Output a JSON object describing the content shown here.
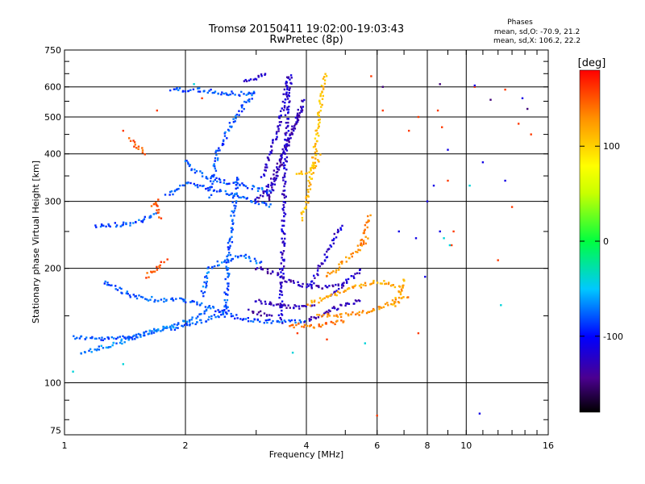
{
  "chart_data": {
    "type": "scatter",
    "title": "Tromsø 20150411 19:02:00-19:03:43",
    "subtitle": "RwPretec (8p)",
    "xlabel": "Frequency [MHz]",
    "ylabel": "Stationary phase Virtual Height [km]",
    "x_scale": "log",
    "y_scale": "log",
    "xlim": [
      1,
      16
    ],
    "ylim": [
      73,
      750
    ],
    "x_ticks": [
      1,
      2,
      4,
      6,
      8,
      10,
      16
    ],
    "y_ticks": [
      75,
      100,
      200,
      300,
      400,
      500,
      600,
      750
    ],
    "grid": true,
    "phase_stats": {
      "title": "Phases",
      "line_o": "mean, sd,O: -70.9, 21.2",
      "line_x": "mean, sd,X: 106.2, 22.2"
    },
    "colorbar": {
      "label": "[deg]",
      "range": [
        -180,
        180
      ],
      "ticks": [
        100,
        0,
        -100
      ]
    },
    "traces": [
      {
        "phase": -80,
        "points": [
          [
            1.05,
            132
          ],
          [
            1.25,
            130
          ],
          [
            1.5,
            133
          ],
          [
            1.8,
            138
          ],
          [
            2.1,
            143
          ],
          [
            2.4,
            150
          ],
          [
            2.6,
            158
          ]
        ]
      },
      {
        "phase": -70,
        "points": [
          [
            1.1,
            120
          ],
          [
            1.3,
            125
          ],
          [
            1.6,
            135
          ],
          [
            2.0,
            145
          ],
          [
            2.3,
            155
          ]
        ]
      },
      {
        "phase": -80,
        "points": [
          [
            1.25,
            185
          ],
          [
            1.45,
            170
          ],
          [
            1.7,
            165
          ],
          [
            2.0,
            165
          ],
          [
            2.3,
            158
          ],
          [
            2.6,
            150
          ],
          [
            3.0,
            145
          ],
          [
            3.5,
            145
          ],
          [
            4.0,
            145
          ]
        ]
      },
      {
        "phase": -80,
        "points": [
          [
            1.2,
            258
          ],
          [
            1.45,
            262
          ],
          [
            1.6,
            270
          ],
          [
            1.7,
            280
          ]
        ]
      },
      {
        "phase": -80,
        "points": [
          [
            1.8,
            310
          ],
          [
            2.0,
            335
          ],
          [
            2.3,
            325
          ],
          [
            2.7,
            310
          ],
          [
            3.0,
            300
          ],
          [
            3.3,
            290
          ]
        ]
      },
      {
        "phase": -80,
        "points": [
          [
            2.0,
            385
          ],
          [
            2.1,
            360
          ],
          [
            2.3,
            345
          ],
          [
            2.6,
            335
          ],
          [
            3.0,
            325
          ],
          [
            3.3,
            315
          ]
        ]
      },
      {
        "phase": -80,
        "points": [
          [
            1.85,
            590
          ],
          [
            2.1,
            590
          ],
          [
            2.4,
            580
          ],
          [
            2.7,
            575
          ],
          [
            3.0,
            580
          ]
        ]
      },
      {
        "phase": -80,
        "points": [
          [
            2.3,
            310
          ],
          [
            2.4,
            400
          ],
          [
            2.6,
            480
          ],
          [
            2.8,
            540
          ],
          [
            3.0,
            575
          ]
        ]
      },
      {
        "phase": -80,
        "points": [
          [
            2.5,
            150
          ],
          [
            2.55,
            200
          ],
          [
            2.6,
            250
          ],
          [
            2.65,
            300
          ],
          [
            2.7,
            350
          ]
        ]
      },
      {
        "phase": -75,
        "points": [
          [
            2.2,
            170
          ],
          [
            2.3,
            200
          ],
          [
            2.5,
            210
          ],
          [
            2.8,
            215
          ],
          [
            3.1,
            205
          ]
        ]
      },
      {
        "phase": -120,
        "points": [
          [
            2.8,
            625
          ],
          [
            3.0,
            635
          ],
          [
            3.2,
            645
          ]
        ]
      },
      {
        "phase": -130,
        "points": [
          [
            3.0,
            300
          ],
          [
            3.3,
            340
          ],
          [
            3.5,
            400
          ],
          [
            3.7,
            460
          ],
          [
            3.9,
            530
          ]
        ]
      },
      {
        "phase": -130,
        "points": [
          [
            3.2,
            300
          ],
          [
            3.4,
            360
          ],
          [
            3.6,
            430
          ],
          [
            3.8,
            500
          ],
          [
            3.95,
            560
          ]
        ]
      },
      {
        "phase": -120,
        "points": [
          [
            3.1,
            350
          ],
          [
            3.3,
            420
          ],
          [
            3.45,
            500
          ],
          [
            3.55,
            580
          ],
          [
            3.6,
            645
          ]
        ]
      },
      {
        "phase": -120,
        "points": [
          [
            3.45,
            145
          ],
          [
            3.5,
            250
          ],
          [
            3.55,
            400
          ],
          [
            3.6,
            550
          ],
          [
            3.65,
            650
          ]
        ]
      },
      {
        "phase": -130,
        "points": [
          [
            3.0,
            200
          ],
          [
            3.3,
            195
          ],
          [
            3.6,
            185
          ],
          [
            4.0,
            180
          ],
          [
            4.5,
            178
          ],
          [
            5.0,
            180
          ]
        ]
      },
      {
        "phase": -130,
        "points": [
          [
            3.0,
            165
          ],
          [
            3.4,
            160
          ],
          [
            3.8,
            158
          ],
          [
            4.2,
            160
          ]
        ]
      },
      {
        "phase": -130,
        "points": [
          [
            4.0,
            145
          ],
          [
            4.3,
            150
          ],
          [
            4.6,
            155
          ],
          [
            5.0,
            160
          ],
          [
            5.5,
            165
          ]
        ]
      },
      {
        "phase": -120,
        "points": [
          [
            4.1,
            180
          ],
          [
            4.3,
            200
          ],
          [
            4.5,
            220
          ],
          [
            4.7,
            240
          ],
          [
            4.9,
            260
          ]
        ]
      },
      {
        "phase": -120,
        "points": [
          [
            4.6,
            170
          ],
          [
            4.9,
            180
          ],
          [
            5.2,
            190
          ],
          [
            5.5,
            200
          ]
        ]
      },
      {
        "phase": -140,
        "points": [
          [
            2.9,
            155
          ],
          [
            3.1,
            152
          ],
          [
            3.3,
            150
          ]
        ]
      },
      {
        "phase": 110,
        "points": [
          [
            3.9,
            270
          ],
          [
            4.0,
            300
          ],
          [
            4.1,
            340
          ],
          [
            4.2,
            400
          ],
          [
            4.3,
            500
          ],
          [
            4.4,
            600
          ],
          [
            4.5,
            650
          ]
        ]
      },
      {
        "phase": 110,
        "points": [
          [
            3.8,
            350
          ],
          [
            4.0,
            360
          ],
          [
            4.2,
            370
          ],
          [
            4.3,
            400
          ]
        ]
      },
      {
        "phase": 120,
        "points": [
          [
            4.0,
            160
          ],
          [
            4.3,
            165
          ],
          [
            4.6,
            170
          ],
          [
            5.0,
            175
          ],
          [
            5.5,
            180
          ],
          [
            6.0,
            185
          ],
          [
            6.5,
            180
          ],
          [
            7.0,
            175
          ]
        ]
      },
      {
        "phase": 130,
        "points": [
          [
            4.3,
            150
          ],
          [
            4.8,
            150
          ],
          [
            5.3,
            152
          ],
          [
            5.8,
            155
          ],
          [
            6.3,
            160
          ],
          [
            6.8,
            165
          ],
          [
            7.2,
            170
          ]
        ]
      },
      {
        "phase": 130,
        "points": [
          [
            4.5,
            190
          ],
          [
            4.8,
            200
          ],
          [
            5.0,
            210
          ],
          [
            5.3,
            220
          ],
          [
            5.5,
            230
          ],
          [
            5.7,
            240
          ]
        ]
      },
      {
        "phase": 140,
        "points": [
          [
            5.5,
            230
          ],
          [
            5.6,
            250
          ],
          [
            5.7,
            270
          ],
          [
            5.75,
            280
          ]
        ]
      },
      {
        "phase": 115,
        "points": [
          [
            6.6,
            160
          ],
          [
            6.8,
            170
          ],
          [
            7.0,
            180
          ],
          [
            7.0,
            190
          ]
        ]
      },
      {
        "phase": 150,
        "points": [
          [
            1.65,
            290
          ],
          [
            1.7,
            300
          ],
          [
            1.7,
            280
          ],
          [
            1.75,
            270
          ]
        ]
      },
      {
        "phase": 150,
        "points": [
          [
            1.6,
            190
          ],
          [
            1.7,
            200
          ],
          [
            1.8,
            210
          ]
        ]
      },
      {
        "phase": 150,
        "points": [
          [
            1.45,
            440
          ],
          [
            1.5,
            420
          ],
          [
            1.55,
            410
          ],
          [
            1.6,
            400
          ]
        ]
      },
      {
        "phase": 140,
        "points": [
          [
            3.6,
            140
          ],
          [
            3.8,
            142
          ],
          [
            4.0,
            140
          ],
          [
            4.4,
            142
          ],
          [
            5.0,
            145
          ]
        ]
      }
    ],
    "outliers": [
      {
        "phase": 160,
        "points": [
          [
            1.4,
            460
          ],
          [
            1.7,
            520
          ],
          [
            2.2,
            560
          ],
          [
            5.8,
            640
          ],
          [
            6.2,
            520
          ],
          [
            7.2,
            460
          ],
          [
            7.6,
            500
          ],
          [
            8.5,
            520
          ],
          [
            8.7,
            470
          ],
          [
            12.5,
            590
          ],
          [
            13.5,
            480
          ],
          [
            9.0,
            340
          ],
          [
            9.3,
            250
          ],
          [
            10.5,
            600
          ],
          [
            12.0,
            210
          ],
          [
            13.0,
            290
          ],
          [
            14.5,
            450
          ],
          [
            6.0,
            82
          ],
          [
            7.6,
            135
          ],
          [
            9.2,
            230
          ],
          [
            3.8,
            135
          ],
          [
            4.5,
            130
          ]
        ]
      },
      {
        "phase": -110,
        "points": [
          [
            7.5,
            240
          ],
          [
            8.0,
            300
          ],
          [
            8.3,
            330
          ],
          [
            8.6,
            250
          ],
          [
            9.0,
            410
          ],
          [
            10.5,
            605
          ],
          [
            11.0,
            380
          ],
          [
            12.5,
            340
          ],
          [
            13.8,
            560
          ],
          [
            10.8,
            83
          ],
          [
            7.9,
            190
          ],
          [
            6.8,
            250
          ]
        ]
      },
      {
        "phase": -40,
        "points": [
          [
            8.8,
            240
          ],
          [
            9.1,
            230
          ],
          [
            10.2,
            330
          ],
          [
            12.2,
            160
          ],
          [
            1.05,
            107
          ],
          [
            1.4,
            112
          ],
          [
            2.1,
            610
          ],
          [
            3.7,
            120
          ],
          [
            5.6,
            127
          ]
        ]
      },
      {
        "phase": -150,
        "points": [
          [
            6.2,
            600
          ],
          [
            8.6,
            610
          ],
          [
            11.5,
            555
          ],
          [
            14.2,
            525
          ]
        ]
      }
    ]
  }
}
